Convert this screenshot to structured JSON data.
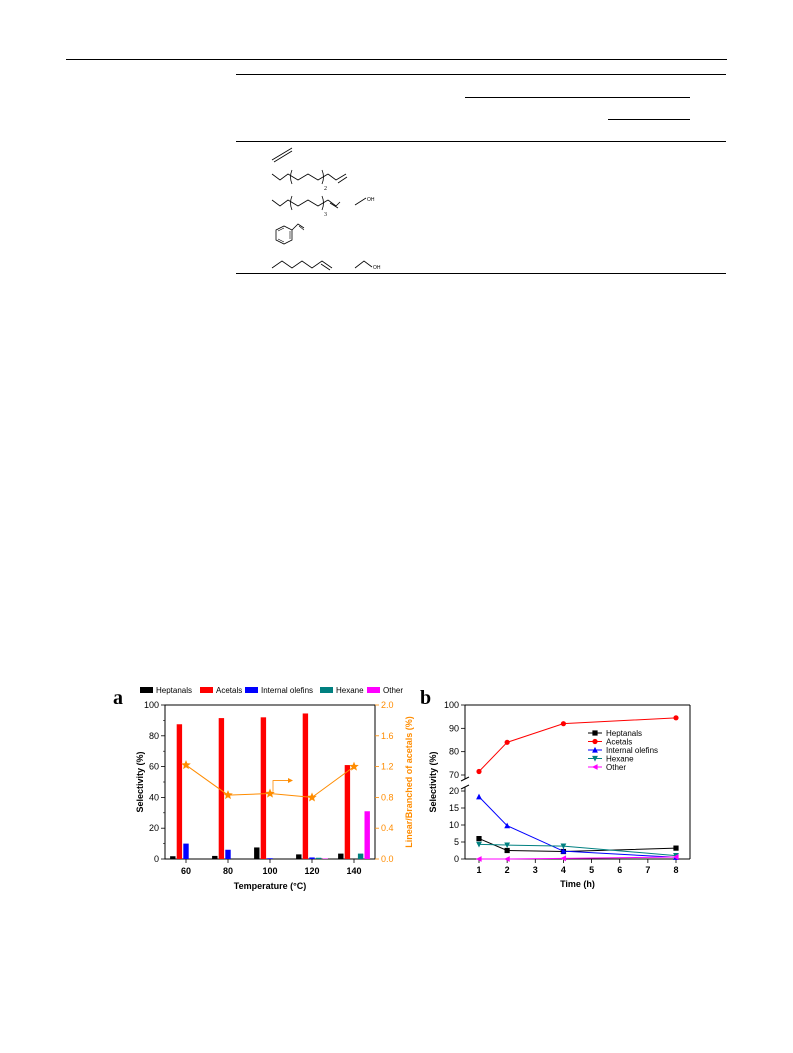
{
  "molecules": {
    "subscript_1": "2",
    "subscript_2": "3",
    "oh_1": "OH",
    "oh_2": "OH"
  },
  "chart_data": [
    {
      "type": "bar",
      "panel_label": "a",
      "categories": [
        "60",
        "80",
        "100",
        "120",
        "140"
      ],
      "xlabel": "Temperature (°C)",
      "ylabel": "Selectivity (%)",
      "y2label": "Linear/Branched of acetals (%)",
      "ylim": [
        0,
        100
      ],
      "y2lim": [
        0,
        2.0
      ],
      "yticks": [
        "0",
        "20",
        "40",
        "60",
        "80",
        "100"
      ],
      "y2ticks": [
        "0.0",
        "0.4",
        "0.8",
        "1.2",
        "1.6",
        "2.0"
      ],
      "legend_placement": "top",
      "series": [
        {
          "name": "Heptanals",
          "color": "#000000",
          "values": [
            1.8,
            2.0,
            7.5,
            3.0,
            3.5
          ]
        },
        {
          "name": "Acetals",
          "color": "#ff0000",
          "values": [
            87.5,
            91.5,
            92,
            94.5,
            61
          ]
        },
        {
          "name": "Internal olefins",
          "color": "#0000ff",
          "values": [
            10,
            6,
            0.5,
            1.0,
            0
          ]
        },
        {
          "name": "Hexane",
          "color": "#008080",
          "values": [
            0,
            0,
            0,
            0.8,
            3.5
          ]
        },
        {
          "name": "Other",
          "color": "#ff00ff",
          "values": [
            0,
            0,
            0,
            0.3,
            31
          ]
        }
      ],
      "line": {
        "name": "",
        "color": "#ff8c00",
        "marker": "star",
        "axis": "right",
        "values": [
          1.22,
          0.83,
          0.85,
          0.8,
          1.2
        ]
      }
    },
    {
      "type": "line",
      "panel_label": "b",
      "x": [
        1,
        2,
        4,
        8
      ],
      "xlabel": "Time (h)",
      "ylabel": "Selectivity (%)",
      "xlim": [
        1,
        8
      ],
      "xticks": [
        "1",
        "2",
        "3",
        "4",
        "5",
        "6",
        "7",
        "8"
      ],
      "ylim_upper": [
        70,
        100
      ],
      "ylim_lower": [
        0,
        20
      ],
      "yticks_upper": [
        "70",
        "80",
        "90",
        "100"
      ],
      "yticks_lower": [
        "0",
        "5",
        "10",
        "15",
        "20"
      ],
      "broken_axis": true,
      "legend_placement": "right",
      "series": [
        {
          "name": "Heptanals",
          "color": "#000000",
          "marker": "square",
          "values": [
            6,
            2.5,
            2.2,
            3.2
          ]
        },
        {
          "name": "Acetals",
          "color": "#ff0000",
          "marker": "circle",
          "values": [
            71.5,
            84,
            92,
            94.5
          ]
        },
        {
          "name": "Internal olefins",
          "color": "#0000ff",
          "marker": "triangle-up",
          "values": [
            18.3,
            9.8,
            2.3,
            0.5
          ]
        },
        {
          "name": "Hexane",
          "color": "#008080",
          "marker": "triangle-down",
          "values": [
            4.3,
            4.1,
            3.8,
            1.0
          ]
        },
        {
          "name": "Other",
          "color": "#ff00ff",
          "marker": "triangle-left",
          "values": [
            0,
            0,
            0.2,
            0.6
          ]
        }
      ]
    }
  ]
}
